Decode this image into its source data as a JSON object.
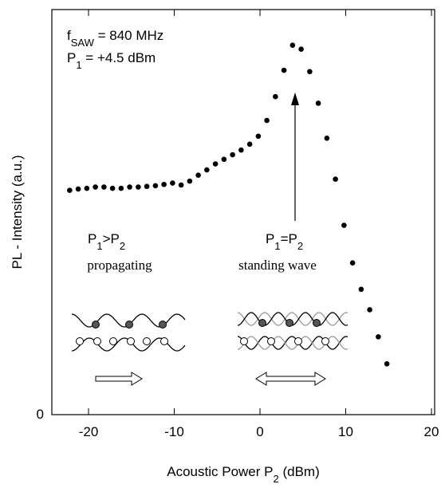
{
  "chart_data": {
    "type": "scatter",
    "annotations": {
      "f_label": [
        "f",
        "SAW",
        " = 840 MHz"
      ],
      "p_label": [
        "P",
        "1",
        " = +4.5 dBm"
      ],
      "left_title": [
        "P",
        "1",
        ">P",
        "2"
      ],
      "left_sub": "propagating",
      "right_title": [
        "P",
        "1",
        "=P",
        "2"
      ],
      "right_sub": "standing wave"
    },
    "x_label": [
      "Acoustic Power P",
      "2",
      " (dBm)"
    ],
    "y_label": "PL - Intensity (a.u.)",
    "x": [
      -22.2,
      -21.2,
      -20.2,
      -19.2,
      -18.2,
      -17.2,
      -16.2,
      -15.2,
      -14.2,
      -13.2,
      -12.2,
      -11.2,
      -10.2,
      -9.2,
      -8.2,
      -7.2,
      -6.2,
      -5.2,
      -4.2,
      -3.2,
      -2.2,
      -1.2,
      -0.2,
      0.8,
      1.8,
      2.8,
      3.8,
      4.8,
      5.8,
      6.8,
      7.8,
      8.8,
      9.8,
      10.8,
      11.8,
      12.8,
      13.8,
      14.8
    ],
    "values": [
      3.4,
      3.42,
      3.43,
      3.45,
      3.45,
      3.43,
      3.43,
      3.45,
      3.45,
      3.46,
      3.47,
      3.49,
      3.51,
      3.48,
      3.54,
      3.63,
      3.71,
      3.8,
      3.87,
      3.94,
      4.01,
      4.1,
      4.22,
      4.46,
      4.82,
      5.22,
      5.6,
      5.54,
      5.2,
      4.72,
      4.19,
      3.57,
      2.87,
      2.3,
      1.9,
      1.59,
      1.18,
      0.77
    ],
    "color": "#000000",
    "xlim": [
      -24.28,
      20.37
    ],
    "xticks": [
      -20,
      -10,
      0,
      10,
      20
    ],
    "ylim": [
      0,
      6.14
    ],
    "yticks": [
      0
    ]
  }
}
